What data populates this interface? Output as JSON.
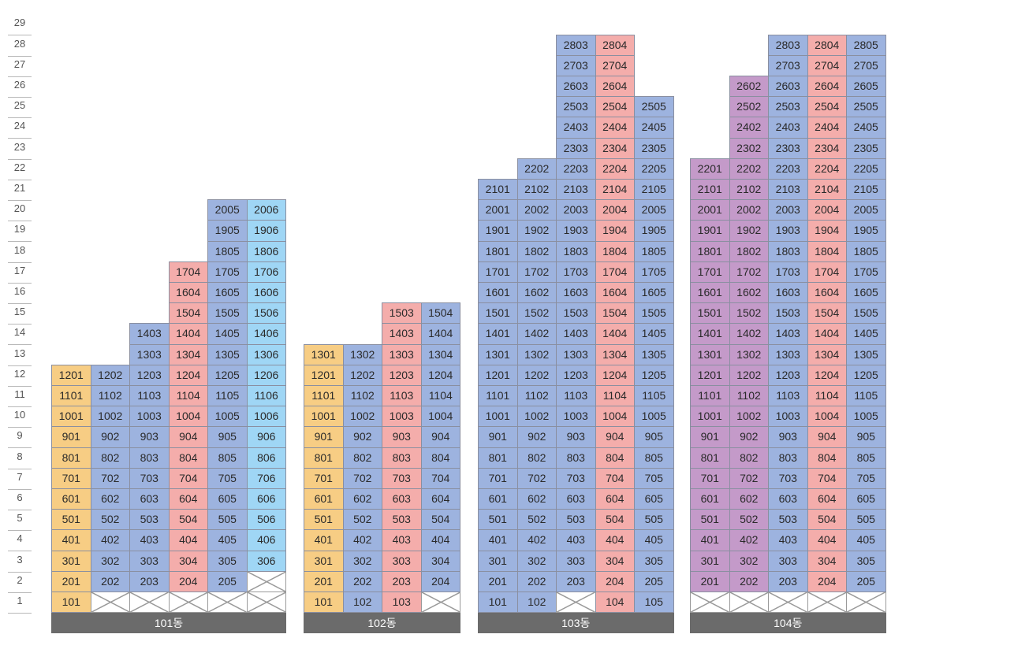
{
  "floors": [
    "29",
    "28",
    "27",
    "26",
    "25",
    "24",
    "23",
    "22",
    "21",
    "20",
    "19",
    "18",
    "17",
    "16",
    "15",
    "14",
    "13",
    "12",
    "11",
    "10",
    "9",
    "8",
    "7",
    "6",
    "5",
    "4",
    "3",
    "2",
    "1"
  ],
  "colors": {
    "orange": "#f7cd84",
    "blue": "#9db3df",
    "pink": "#f4adab",
    "sky": "#9fd6f5",
    "purple": "#c49ac9"
  },
  "buildings": [
    {
      "name": "101동",
      "lines": [
        {
          "color": "orange",
          "top": 12,
          "empty": []
        },
        {
          "color": "blue",
          "top": 12,
          "empty": [
            1
          ]
        },
        {
          "color": "blue",
          "top": 14,
          "empty": [
            1
          ]
        },
        {
          "color": "pink",
          "top": 17,
          "empty": [
            1
          ]
        },
        {
          "color": "blue",
          "top": 20,
          "empty": [
            1
          ]
        },
        {
          "color": "sky",
          "top": 20,
          "empty": [
            1,
            2
          ]
        }
      ]
    },
    {
      "name": "102동",
      "lines": [
        {
          "color": "orange",
          "top": 13,
          "empty": []
        },
        {
          "color": "blue",
          "top": 13,
          "empty": []
        },
        {
          "color": "pink",
          "top": 15,
          "empty": []
        },
        {
          "color": "blue",
          "top": 15,
          "empty": [
            1
          ]
        }
      ]
    },
    {
      "name": "103동",
      "lines": [
        {
          "color": "blue",
          "top": 21,
          "empty": []
        },
        {
          "color": "blue",
          "top": 22,
          "empty": []
        },
        {
          "color": "blue",
          "top": 28,
          "empty": [
            1
          ]
        },
        {
          "color": "pink",
          "top": 28,
          "empty": []
        },
        {
          "color": "blue",
          "top": 25,
          "empty": []
        }
      ]
    },
    {
      "name": "104동",
      "lines": [
        {
          "color": "purple",
          "top": 22,
          "empty": [
            1
          ]
        },
        {
          "color": "purple",
          "top": 26,
          "empty": [
            1
          ]
        },
        {
          "color": "blue",
          "top": 28,
          "empty": [
            1
          ]
        },
        {
          "color": "pink",
          "top": 28,
          "empty": [
            1
          ]
        },
        {
          "color": "blue",
          "top": 28,
          "empty": [
            1
          ]
        }
      ]
    }
  ]
}
